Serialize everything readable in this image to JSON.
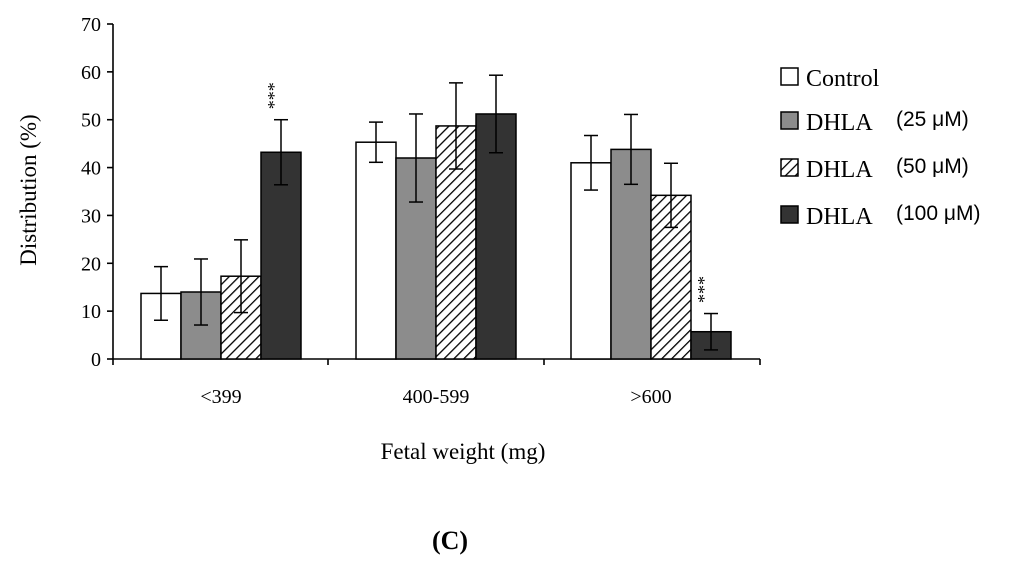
{
  "panel_label": "(C)",
  "colors": {
    "Control": "#ffffff",
    "DHLA (25 μM)": "#8c8c8c",
    "DHLA (50 μM)": "hatch",
    "DHLA (100 μM)": "#333333"
  },
  "chart_data": {
    "type": "bar",
    "xlabel": "Fetal weight (mg)",
    "ylabel": "Distribution (%)",
    "ylim": [
      0,
      70
    ],
    "yticks": [
      0,
      10,
      20,
      30,
      40,
      50,
      60,
      70
    ],
    "categories": [
      "<399",
      "400-599",
      ">600"
    ],
    "legend_position": "right",
    "series": [
      {
        "name": "Control",
        "legend_main": "Control",
        "legend_unit": "",
        "values": [
          13.7,
          45.3,
          41.0
        ],
        "errors": [
          5.6,
          4.2,
          5.7
        ],
        "markers": [
          "",
          "",
          ""
        ]
      },
      {
        "name": "DHLA (25 μM)",
        "legend_main": "DHLA",
        "legend_unit": "(25 μM)",
        "values": [
          14.0,
          42.0,
          43.8
        ],
        "errors": [
          6.9,
          9.2,
          7.3
        ],
        "markers": [
          "",
          "",
          ""
        ]
      },
      {
        "name": "DHLA (50 μM)",
        "legend_main": "DHLA",
        "legend_unit": "(50 μM)",
        "values": [
          17.3,
          48.7,
          34.2
        ],
        "errors": [
          7.6,
          9.0,
          6.7
        ],
        "markers": [
          "",
          "",
          ""
        ]
      },
      {
        "name": "DHLA (100 μM)",
        "legend_main": "DHLA",
        "legend_unit": "(100 μM)",
        "values": [
          43.2,
          51.2,
          5.7
        ],
        "errors": [
          6.8,
          8.1,
          3.8
        ],
        "markers": [
          "***",
          "",
          "***"
        ]
      }
    ]
  }
}
